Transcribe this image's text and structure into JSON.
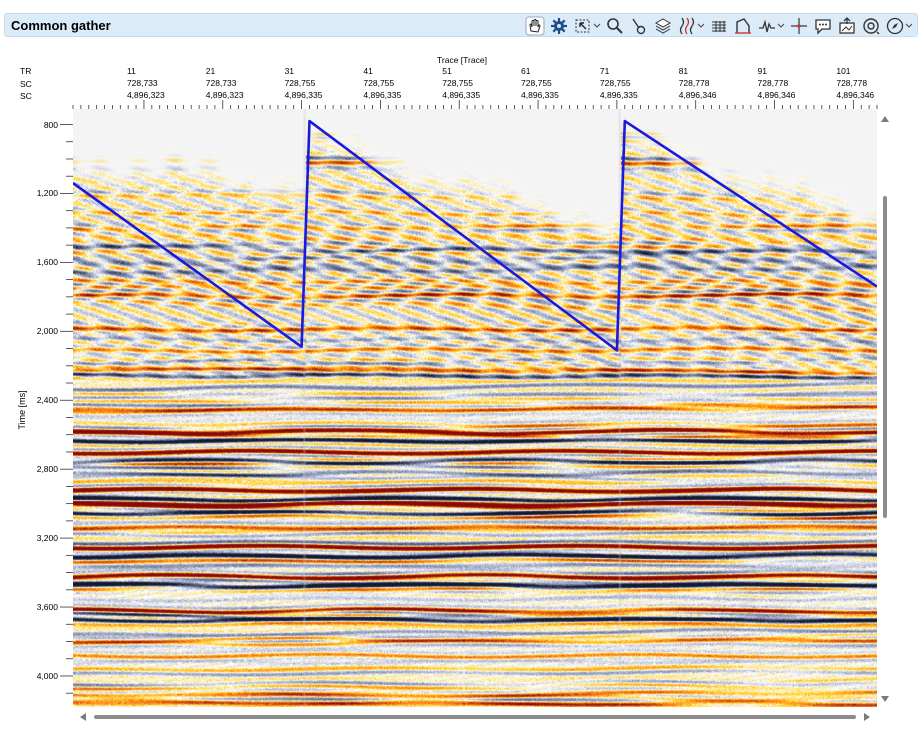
{
  "window": {
    "title": "Common gather"
  },
  "toolbar": {
    "items": [
      {
        "icon": "pan-hand-icon",
        "active": true
      },
      {
        "icon": "settings-gear-icon"
      },
      {
        "icon": "selection-icon",
        "dropdown": true
      },
      {
        "icon": "zoom-magnifier-icon"
      },
      {
        "icon": "pointer-probe-icon"
      },
      {
        "icon": "layers-icon"
      },
      {
        "icon": "wiggle-display-icon",
        "dropdown": true
      },
      {
        "icon": "spectrum-icon"
      },
      {
        "icon": "gain-icon"
      },
      {
        "icon": "wavelet-icon",
        "dropdown": true
      },
      {
        "icon": "crosshair-icon"
      },
      {
        "icon": "comment-icon"
      },
      {
        "icon": "export-image-icon"
      },
      {
        "icon": "snapshot-icon"
      },
      {
        "icon": "compass-icon",
        "dropdown": true
      }
    ]
  },
  "header": {
    "x_axis_title": "Trace [Trace]",
    "row_labels": [
      "TR",
      "SC",
      "SC"
    ],
    "columns": [
      {
        "tr": "11",
        "sc1": "728,733",
        "sc2": "4,896,323"
      },
      {
        "tr": "21",
        "sc1": "728,733",
        "sc2": "4,896,323"
      },
      {
        "tr": "31",
        "sc1": "728,755",
        "sc2": "4,896,335"
      },
      {
        "tr": "41",
        "sc1": "728,755",
        "sc2": "4,896,335"
      },
      {
        "tr": "51",
        "sc1": "728,755",
        "sc2": "4,896,335"
      },
      {
        "tr": "61",
        "sc1": "728,755",
        "sc2": "4,896,335"
      },
      {
        "tr": "71",
        "sc1": "728,755",
        "sc2": "4,896,335"
      },
      {
        "tr": "81",
        "sc1": "728,778",
        "sc2": "4,896,346"
      },
      {
        "tr": "91",
        "sc1": "728,778",
        "sc2": "4,896,346"
      },
      {
        "tr": "101",
        "sc1": "728,778",
        "sc2": "4,896,346"
      }
    ]
  },
  "y_axis": {
    "title": "Time [ms]",
    "ticks": [
      "800",
      "1,200",
      "1,600",
      "2,000",
      "2,400",
      "2,800",
      "3,200",
      "3,600",
      "4,000"
    ]
  },
  "colors": {
    "pick_line": "#1a1adf",
    "positive": "#c8141e",
    "negative": "#1e2a50",
    "titlebar": "#dcebf8"
  },
  "seismic": {
    "trace_range": [
      2,
      104
    ],
    "time_range_ms": [
      710,
      4180
    ],
    "shots": [
      {
        "first_trace": 2,
        "last_trace": 31,
        "mute_start_ms": 920,
        "mute_end_ms": 1060
      },
      {
        "first_trace": 32,
        "last_trace": 71,
        "mute_start_ms": 790,
        "mute_end_ms": 1300
      },
      {
        "first_trace": 72,
        "last_trace": 104,
        "mute_start_ms": 780,
        "mute_end_ms": 1250
      }
    ],
    "strong_reflectors_ms": [
      2580,
      2700,
      2920,
      3000,
      3250,
      3420,
      3620
    ]
  },
  "pick_line": {
    "points": [
      {
        "trace": 2,
        "time_ms": 1140
      },
      {
        "trace": 31,
        "time_ms": 2090
      },
      {
        "trace": 32,
        "time_ms": 780
      },
      {
        "trace": 71,
        "time_ms": 2110
      },
      {
        "trace": 72,
        "time_ms": 780
      },
      {
        "trace": 104,
        "time_ms": 1740
      }
    ]
  }
}
